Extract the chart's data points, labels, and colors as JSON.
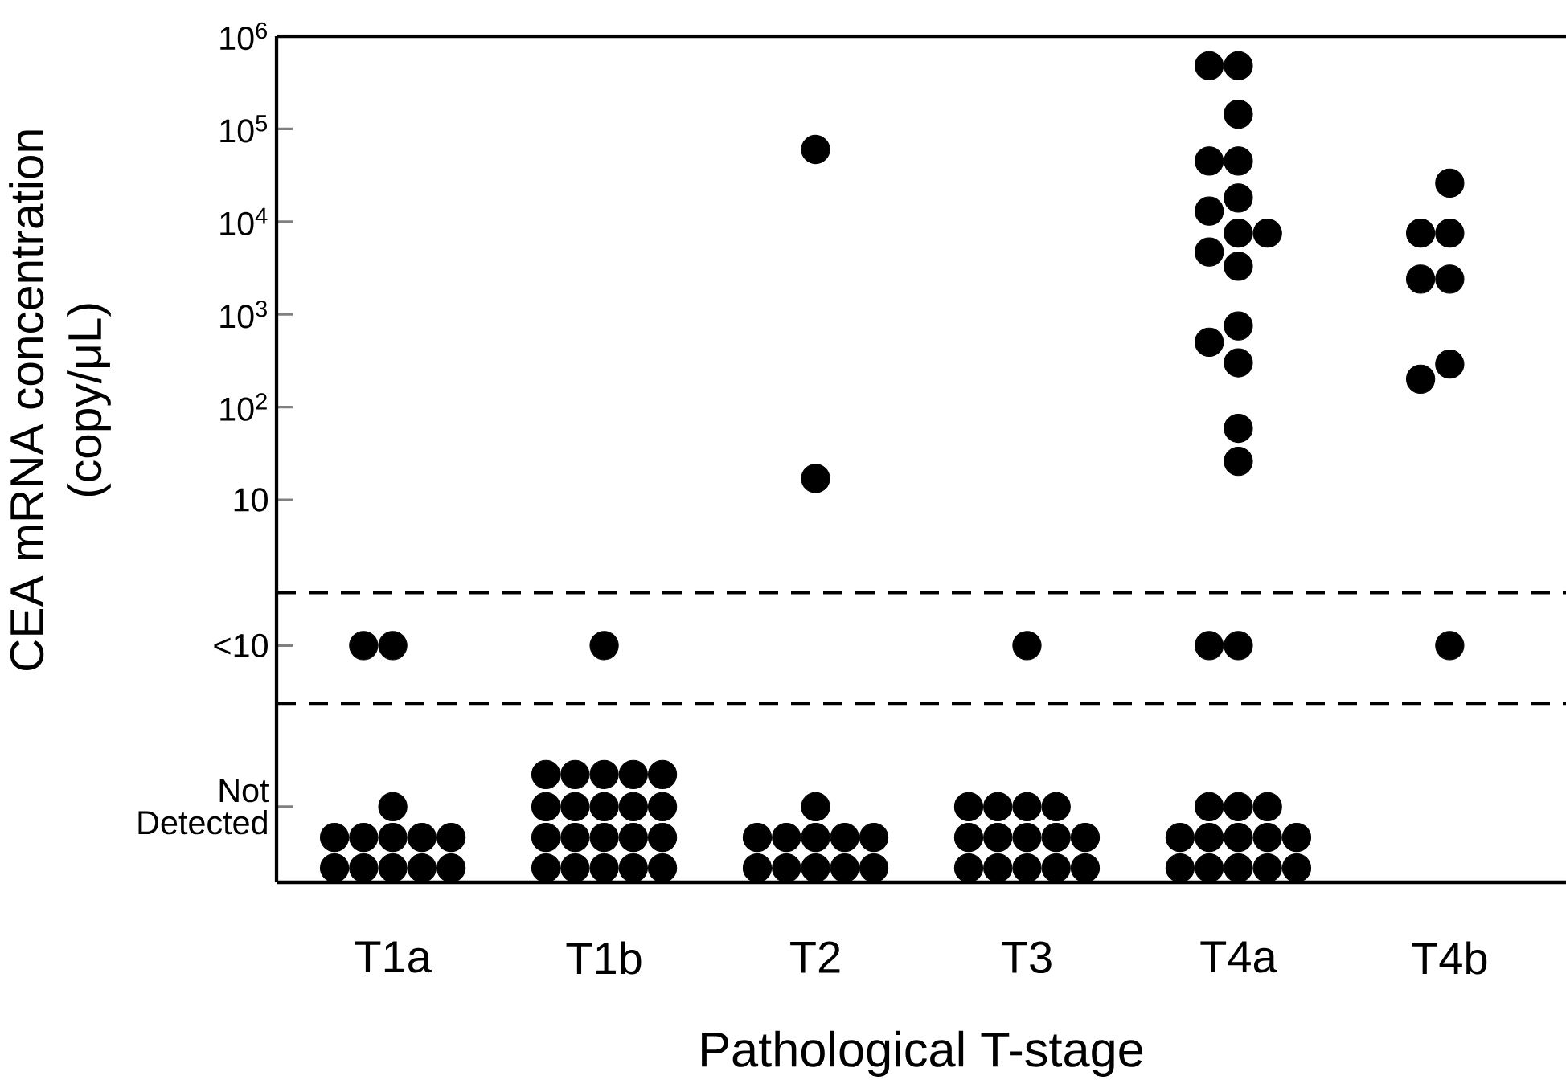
{
  "chart_data": {
    "type": "scatter",
    "xlabel": "Pathological T-stage",
    "ylabel": "CEA mRNA concentration (copy/μL)",
    "log": "y",
    "categories": [
      "T1a",
      "T1b",
      "T2",
      "T3",
      "T4a",
      "T4b"
    ],
    "ylim": [
      0.00075,
      1000000
    ],
    "yticks": [
      {
        "value": 0.0049,
        "label": "Not Detected"
      },
      {
        "value": 0.268,
        "label": "<10"
      },
      10,
      {
        "value": 100,
        "label": "10$^{2}$"
      },
      {
        "value": 1000,
        "label": "10$^{3}$"
      },
      {
        "value": 10000,
        "label": "10$^{4}$"
      },
      {
        "value": 100000,
        "label": "10$^{5}$"
      },
      {
        "value": 1000000,
        "label": "10$^{6}$"
      }
    ],
    "ref_lines": [
      {
        "axis": "y",
        "value": 1,
        "color": "#000000",
        "line_style": "dashed"
      },
      {
        "axis": "y",
        "value": 0.064,
        "color": "#000000",
        "line_style": "dashed"
      }
    ],
    "series": [
      {
        "color": "#000000",
        "x": [
          "T1a",
          "T1a",
          "T1a",
          "T1a",
          "T1a",
          "T1a",
          "T1a",
          "T1a",
          "T1a",
          "T1a",
          "T1a",
          "T1a",
          "T1a",
          "T1b",
          "T1b",
          "T1b",
          "T1b",
          "T1b",
          "T1b",
          "T1b",
          "T1b",
          "T1b",
          "T1b",
          "T1b",
          "T1b",
          "T1b",
          "T1b",
          "T1b",
          "T1b",
          "T1b",
          "T1b",
          "T1b",
          "T1b",
          "T1b",
          "T2",
          "T2",
          "T2",
          "T2",
          "T2",
          "T2",
          "T2",
          "T2",
          "T2",
          "T2",
          "T2",
          "T2",
          "T2",
          "T3",
          "T3",
          "T3",
          "T3",
          "T3",
          "T3",
          "T3",
          "T3",
          "T3",
          "T3",
          "T3",
          "T3",
          "T3",
          "T3",
          "T3",
          "T4a",
          "T4a",
          "T4a",
          "T4a",
          "T4a",
          "T4a",
          "T4a",
          "T4a",
          "T4a",
          "T4a",
          "T4a",
          "T4a",
          "T4a",
          "T4a",
          "T4a",
          "T4a",
          "T4a",
          "T4a",
          "T4a",
          "T4a",
          "T4a",
          "T4a",
          "T4a",
          "T4a",
          "T4a",
          "T4a",
          "T4a",
          "T4a",
          "T4a",
          "T4a",
          "T4a",
          "T4b",
          "T4b",
          "T4b",
          "T4b",
          "T4b",
          "T4b",
          "T4b",
          "T4b"
        ],
        "values": [
          0.00107,
          0.00107,
          0.00107,
          0.00107,
          0.00107,
          0.00229,
          0.00229,
          0.00229,
          0.00229,
          0.00229,
          0.0049,
          0.268,
          0.268,
          0.00107,
          0.00107,
          0.00107,
          0.00107,
          0.00107,
          0.00229,
          0.00229,
          0.00229,
          0.00229,
          0.00229,
          0.0049,
          0.0049,
          0.0049,
          0.0049,
          0.0049,
          0.0109,
          0.0109,
          0.0109,
          0.0109,
          0.0109,
          0.268,
          0.00107,
          0.00107,
          0.00107,
          0.00107,
          0.00107,
          0.00229,
          0.00229,
          0.00229,
          0.00229,
          0.00229,
          0.0049,
          60000,
          17,
          0.00107,
          0.00107,
          0.00107,
          0.00107,
          0.00107,
          0.00229,
          0.00229,
          0.00229,
          0.00229,
          0.00229,
          0.0049,
          0.0049,
          0.0049,
          0.0049,
          0.268,
          0.00107,
          0.00107,
          0.00107,
          0.00107,
          0.00107,
          0.00229,
          0.00229,
          0.00229,
          0.00229,
          0.00229,
          0.0049,
          0.0049,
          0.0049,
          0.268,
          0.268,
          480000,
          480000,
          144000,
          45000,
          45000,
          18000,
          13000,
          7500,
          7500,
          4700,
          3300,
          750,
          500,
          300,
          59,
          26,
          0.268,
          26000,
          7500,
          7500,
          2400,
          2400,
          290,
          200
        ]
      }
    ]
  }
}
